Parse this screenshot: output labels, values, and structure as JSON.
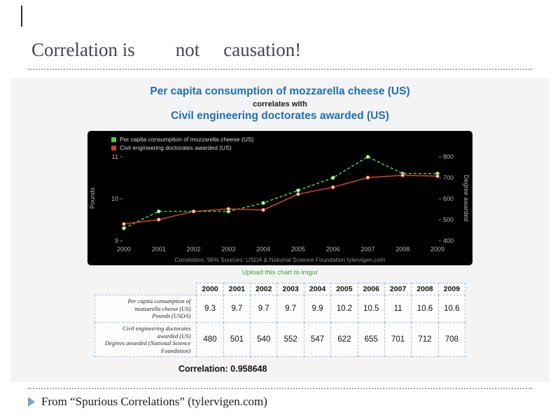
{
  "slide": {
    "title": {
      "part1": "Correlation is",
      "part2": "not",
      "part3": "causation!"
    },
    "footer": {
      "text": "From “Spurious Correlations” (tylervigen.com)"
    }
  },
  "panel": {
    "heading1": "Per capita consumption of mozzarella cheese (US)",
    "connector": "correlates with",
    "heading2": "Civil engineering doctorates awarded (US)",
    "upload_link": "Upload this chart to imgur",
    "correlation_label": "Correlation: 0.958648"
  },
  "chart": {
    "legend": [
      {
        "label": "Per capita consumption of mozzarella cheese (US)",
        "color": "#3fd23f"
      },
      {
        "label": "Civil engineering doctorates awarded (US)",
        "color": "#d03a2b"
      }
    ],
    "left_axis_label": "Pounds",
    "right_axis_label": "Degree awarded",
    "footer": "Correlation: 96%   Sources: USDA & National Science Foundation   tylervigen.com"
  },
  "chart_data": {
    "type": "line",
    "title": "Per capita consumption of mozzarella cheese (US) correlates with Civil engineering doctorates awarded (US)",
    "x": [
      2000,
      2001,
      2002,
      2003,
      2004,
      2005,
      2006,
      2007,
      2008,
      2009
    ],
    "series": [
      {
        "name": "Per capita consumption of mozzarella cheese (US)",
        "axis": "left",
        "unit": "Pounds",
        "values": [
          9.3,
          9.7,
          9.7,
          9.7,
          9.9,
          10.2,
          10.5,
          11,
          10.6,
          10.6
        ],
        "color": "#3fd23f",
        "marker_fill": "#d9f5d9",
        "dashed": true
      },
      {
        "name": "Civil engineering doctorates awarded (US)",
        "axis": "right",
        "unit": "Degrees awarded",
        "values": [
          480,
          501,
          540,
          552,
          547,
          622,
          655,
          701,
          712,
          708
        ],
        "color": "#d03a2b",
        "marker_fill": "#f6ddd7",
        "dashed": false
      }
    ],
    "left_axis": {
      "label": "Pounds",
      "min": 9,
      "max": 11,
      "ticks": [
        9,
        10,
        11
      ]
    },
    "right_axis": {
      "label": "Degree awarded",
      "min": 400,
      "max": 800,
      "ticks": [
        400,
        500,
        600,
        700,
        800
      ]
    },
    "legend_position": "top-left",
    "grid": false,
    "background": "#000000"
  },
  "table": {
    "years": [
      "2000",
      "2001",
      "2002",
      "2003",
      "2004",
      "2005",
      "2006",
      "2007",
      "2008",
      "2009"
    ],
    "rows": [
      {
        "label_line1": "Per capita consumption of mozzarella cheese (US)",
        "label_line2": "Pounds (USDA)",
        "values": [
          "9.3",
          "9.7",
          "9.7",
          "9.7",
          "9.9",
          "10.2",
          "10.5",
          "11",
          "10.6",
          "10.6"
        ]
      },
      {
        "label_line1": "Civil engineering doctorates awarded (US)",
        "label_line2": "Degrees awarded (National Science Foundation)",
        "values": [
          "480",
          "501",
          "540",
          "552",
          "547",
          "622",
          "655",
          "701",
          "712",
          "708"
        ]
      }
    ]
  }
}
